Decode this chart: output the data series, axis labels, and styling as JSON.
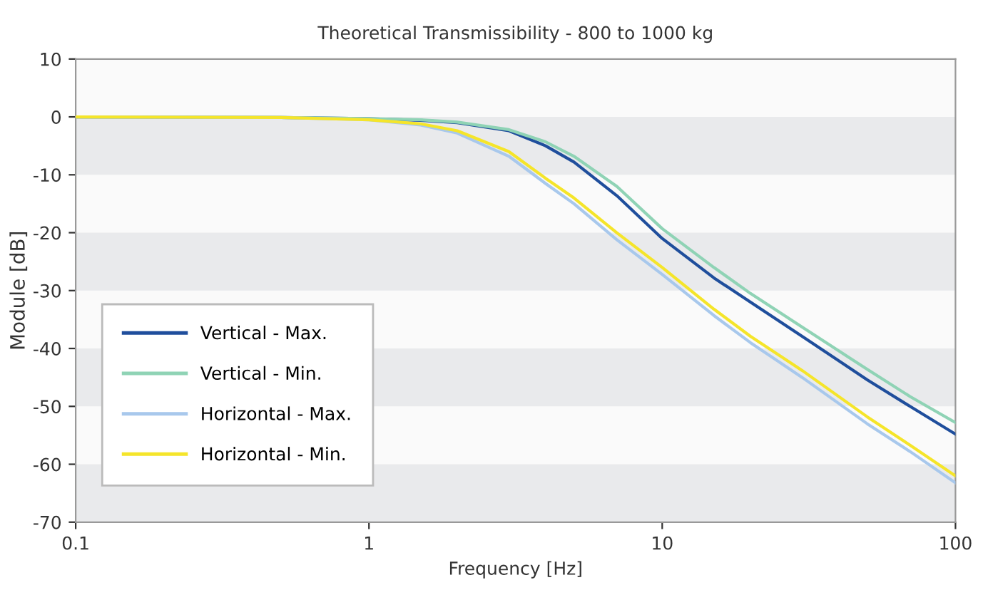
{
  "chart_data": {
    "type": "line",
    "title": "Theoretical Transmissibility - 800 to 1000 kg",
    "xlabel": "Frequency [Hz]",
    "ylabel": "Module [dB]",
    "log": "x",
    "xlim": [
      0.1,
      100
    ],
    "xticks": [
      0.1,
      1,
      10,
      100
    ],
    "ylim": [
      -70,
      10
    ],
    "yticks": [
      -70,
      -60,
      -50,
      -40,
      -30,
      -20,
      -10,
      0,
      10
    ],
    "grid": false,
    "legend": "bottom left",
    "marker": "none",
    "line_style": "solid",
    "bands": [
      {
        "axis": "y",
        "from": 0,
        "to": -10,
        "color": "#e9eaec"
      },
      {
        "axis": "y",
        "from": -20,
        "to": -30,
        "color": "#e9eaec"
      },
      {
        "axis": "y",
        "from": -40,
        "to": -50,
        "color": "#e9eaec"
      },
      {
        "axis": "y",
        "from": -60,
        "to": -70,
        "color": "#e9eaec"
      }
    ],
    "x": [
      0.1,
      0.5,
      1,
      1.5,
      2,
      3,
      4,
      5,
      7,
      10,
      15,
      20,
      30,
      50,
      70,
      100
    ],
    "series": [
      {
        "name": "Vertical - Max.",
        "color": "#1f4e9c",
        "values": [
          0,
          -0.1,
          -0.3,
          -0.6,
          -1,
          -2.4,
          -5,
          -7.8,
          -13.6,
          -21,
          -27.8,
          -32,
          -37.9,
          -45.4,
          -50,
          -54.8
        ]
      },
      {
        "name": "Vertical - Min.",
        "color": "#8fd3b5",
        "values": [
          0,
          -0.1,
          -0.3,
          -0.5,
          -0.9,
          -2.2,
          -4.3,
          -6.8,
          -12,
          -19.3,
          -26,
          -30.5,
          -36.3,
          -43.6,
          -48.3,
          -52.8
        ]
      },
      {
        "name": "Horizontal - Max.",
        "color": "#a8c8ec",
        "values": [
          0,
          -0.1,
          -0.5,
          -1.4,
          -2.8,
          -6.8,
          -11.5,
          -15,
          -21.2,
          -27.2,
          -34.3,
          -39,
          -45,
          -53,
          -57.8,
          -63.2
        ]
      },
      {
        "name": "Horizontal - Min.",
        "color": "#f5e52a",
        "values": [
          0,
          -0.1,
          -0.5,
          -1.2,
          -2.4,
          -6,
          -10.6,
          -14,
          -20,
          -26,
          -33.2,
          -37.9,
          -43.8,
          -51.8,
          -56.7,
          -62
        ]
      }
    ]
  }
}
